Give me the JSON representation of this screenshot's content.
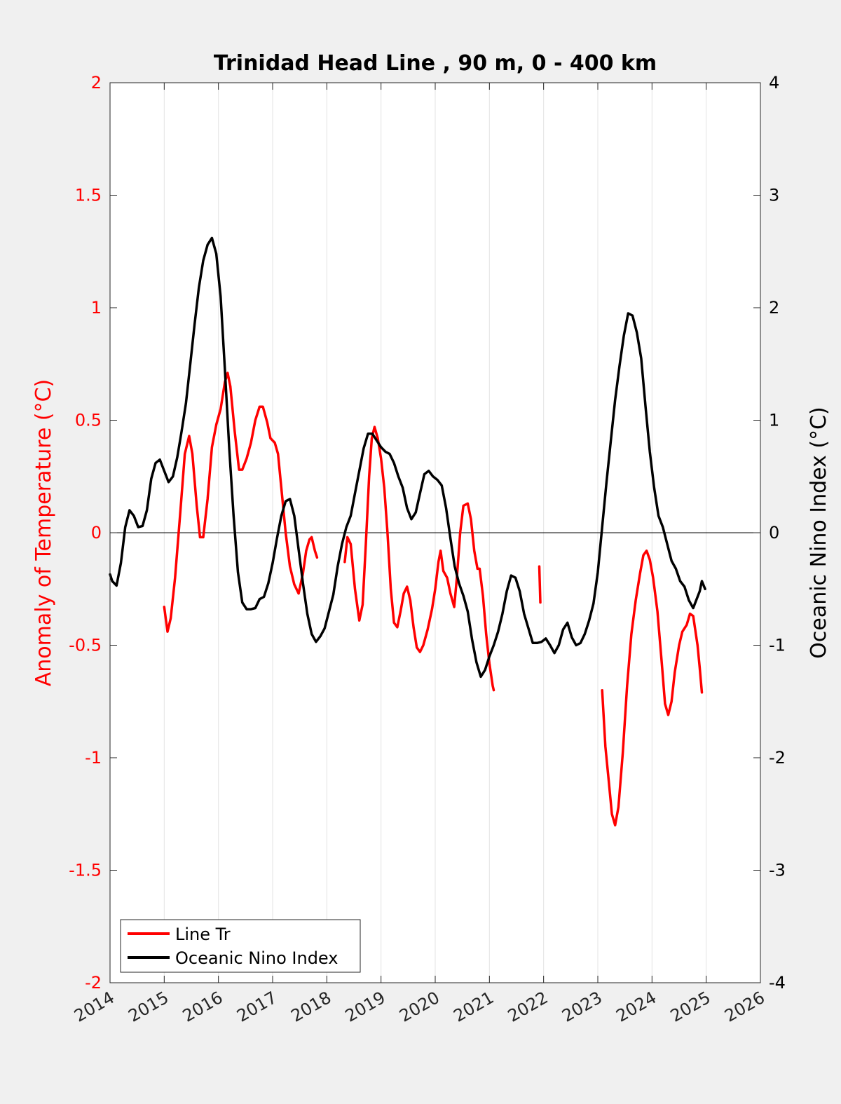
{
  "chart_data": {
    "type": "line",
    "title": "Trinidad Head Line , 90 m, 0 - 400 km",
    "xlabel": "",
    "ylabel_left": "Anomaly of Temperature (°C)",
    "ylabel_right": "Oceanic Nino Index (°C)",
    "xlim": [
      2014,
      2026
    ],
    "ylim_left": [
      -2,
      2
    ],
    "ylim_right": [
      -4,
      4
    ],
    "x_ticks": [
      "2014",
      "2015",
      "2016",
      "2017",
      "2018",
      "2019",
      "2020",
      "2021",
      "2022",
      "2023",
      "2024",
      "2025",
      "2026"
    ],
    "y_ticks_left": [
      "2",
      "1.5",
      "1",
      "0.5",
      "0",
      "-0.5",
      "-1",
      "-1.5",
      "-2"
    ],
    "y_ticks_right": [
      "4",
      "3",
      "2",
      "1",
      "0",
      "-1",
      "-2",
      "-3",
      "-4"
    ],
    "grid": "vertical",
    "zero_line": true,
    "legend_position": "bottom-left",
    "colors": {
      "line_tr": "#ff0000",
      "oni": "#000000",
      "left_axis": "#ff0000",
      "right_axis": "#000000"
    },
    "series": [
      {
        "name": "Line Tr",
        "axis": "left",
        "color": "#ff0000",
        "segments": [
          [
            [
              2015.0,
              -0.33
            ],
            [
              2015.06,
              -0.44
            ],
            [
              2015.12,
              -0.38
            ],
            [
              2015.2,
              -0.2
            ],
            [
              2015.3,
              0.1
            ],
            [
              2015.38,
              0.35
            ],
            [
              2015.46,
              0.43
            ],
            [
              2015.52,
              0.35
            ],
            [
              2015.6,
              0.12
            ],
            [
              2015.66,
              -0.02
            ],
            [
              2015.72,
              -0.02
            ],
            [
              2015.8,
              0.15
            ],
            [
              2015.88,
              0.38
            ],
            [
              2015.96,
              0.48
            ],
            [
              2016.04,
              0.55
            ],
            [
              2016.12,
              0.67
            ],
            [
              2016.17,
              0.71
            ],
            [
              2016.22,
              0.65
            ],
            [
              2016.3,
              0.45
            ],
            [
              2016.38,
              0.28
            ],
            [
              2016.44,
              0.28
            ],
            [
              2016.52,
              0.33
            ],
            [
              2016.6,
              0.4
            ],
            [
              2016.68,
              0.5
            ],
            [
              2016.76,
              0.56
            ],
            [
              2016.82,
              0.56
            ],
            [
              2016.9,
              0.49
            ],
            [
              2016.96,
              0.42
            ],
            [
              2017.04,
              0.4
            ],
            [
              2017.1,
              0.35
            ],
            [
              2017.16,
              0.2
            ],
            [
              2017.24,
              0.0
            ],
            [
              2017.32,
              -0.15
            ],
            [
              2017.4,
              -0.23
            ],
            [
              2017.48,
              -0.27
            ],
            [
              2017.56,
              -0.18
            ],
            [
              2017.62,
              -0.08
            ],
            [
              2017.68,
              -0.03
            ],
            [
              2017.72,
              -0.02
            ],
            [
              2017.78,
              -0.08
            ],
            [
              2017.82,
              -0.11
            ]
          ],
          [
            [
              2018.33,
              -0.13
            ],
            [
              2018.38,
              -0.02
            ],
            [
              2018.44,
              -0.05
            ],
            [
              2018.52,
              -0.25
            ],
            [
              2018.6,
              -0.39
            ],
            [
              2018.66,
              -0.32
            ],
            [
              2018.72,
              -0.05
            ],
            [
              2018.78,
              0.25
            ],
            [
              2018.83,
              0.42
            ],
            [
              2018.88,
              0.47
            ],
            [
              2018.94,
              0.42
            ],
            [
              2019.0,
              0.33
            ],
            [
              2019.06,
              0.2
            ],
            [
              2019.12,
              0.0
            ],
            [
              2019.18,
              -0.25
            ],
            [
              2019.24,
              -0.4
            ],
            [
              2019.3,
              -0.42
            ],
            [
              2019.36,
              -0.35
            ],
            [
              2019.42,
              -0.27
            ],
            [
              2019.48,
              -0.24
            ],
            [
              2019.54,
              -0.3
            ],
            [
              2019.6,
              -0.42
            ],
            [
              2019.66,
              -0.51
            ],
            [
              2019.72,
              -0.53
            ],
            [
              2019.78,
              -0.5
            ],
            [
              2019.86,
              -0.43
            ],
            [
              2019.94,
              -0.34
            ],
            [
              2020.0,
              -0.25
            ],
            [
              2020.06,
              -0.13
            ],
            [
              2020.1,
              -0.08
            ],
            [
              2020.15,
              -0.17
            ],
            [
              2020.22,
              -0.2
            ],
            [
              2020.28,
              -0.27
            ],
            [
              2020.35,
              -0.33
            ],
            [
              2020.4,
              -0.2
            ],
            [
              2020.46,
              0.0
            ],
            [
              2020.52,
              0.12
            ],
            [
              2020.6,
              0.13
            ],
            [
              2020.66,
              0.06
            ],
            [
              2020.72,
              -0.08
            ],
            [
              2020.78,
              -0.16
            ],
            [
              2020.82,
              -0.16
            ],
            [
              2020.88,
              -0.28
            ],
            [
              2020.94,
              -0.45
            ],
            [
              2021.0,
              -0.58
            ],
            [
              2021.06,
              -0.68
            ],
            [
              2021.08,
              -0.7
            ]
          ],
          [
            [
              2021.92,
              -0.15
            ],
            [
              2021.94,
              -0.31
            ]
          ],
          [
            [
              2023.08,
              -0.7
            ],
            [
              2023.14,
              -0.95
            ],
            [
              2023.2,
              -1.1
            ],
            [
              2023.26,
              -1.25
            ],
            [
              2023.32,
              -1.3
            ],
            [
              2023.38,
              -1.22
            ],
            [
              2023.46,
              -0.98
            ],
            [
              2023.54,
              -0.68
            ],
            [
              2023.62,
              -0.45
            ],
            [
              2023.7,
              -0.3
            ],
            [
              2023.78,
              -0.18
            ],
            [
              2023.84,
              -0.1
            ],
            [
              2023.9,
              -0.08
            ],
            [
              2023.96,
              -0.12
            ],
            [
              2024.02,
              -0.2
            ],
            [
              2024.1,
              -0.35
            ],
            [
              2024.18,
              -0.58
            ],
            [
              2024.24,
              -0.76
            ],
            [
              2024.3,
              -0.81
            ],
            [
              2024.36,
              -0.75
            ],
            [
              2024.42,
              -0.62
            ],
            [
              2024.5,
              -0.5
            ],
            [
              2024.56,
              -0.44
            ],
            [
              2024.64,
              -0.41
            ],
            [
              2024.7,
              -0.36
            ],
            [
              2024.76,
              -0.37
            ],
            [
              2024.84,
              -0.5
            ],
            [
              2024.88,
              -0.6
            ],
            [
              2024.92,
              -0.71
            ]
          ]
        ]
      },
      {
        "name": "Oceanic Nino Index",
        "axis": "right",
        "color": "#000000",
        "segments": [
          [
            [
              2014.0,
              -0.37
            ],
            [
              2014.04,
              -0.43
            ],
            [
              2014.12,
              -0.47
            ],
            [
              2014.2,
              -0.27
            ],
            [
              2014.28,
              0.05
            ],
            [
              2014.36,
              0.2
            ],
            [
              2014.44,
              0.15
            ],
            [
              2014.52,
              0.05
            ],
            [
              2014.6,
              0.06
            ],
            [
              2014.68,
              0.2
            ],
            [
              2014.76,
              0.48
            ],
            [
              2014.84,
              0.62
            ],
            [
              2014.92,
              0.65
            ],
            [
              2015.0,
              0.55
            ],
            [
              2015.08,
              0.45
            ],
            [
              2015.16,
              0.5
            ],
            [
              2015.24,
              0.67
            ],
            [
              2015.32,
              0.9
            ],
            [
              2015.4,
              1.15
            ],
            [
              2015.48,
              1.5
            ],
            [
              2015.56,
              1.85
            ],
            [
              2015.64,
              2.18
            ],
            [
              2015.72,
              2.42
            ],
            [
              2015.8,
              2.56
            ],
            [
              2015.88,
              2.62
            ],
            [
              2015.96,
              2.48
            ],
            [
              2016.04,
              2.1
            ],
            [
              2016.12,
              1.45
            ],
            [
              2016.2,
              0.75
            ],
            [
              2016.28,
              0.15
            ],
            [
              2016.36,
              -0.35
            ],
            [
              2016.44,
              -0.62
            ],
            [
              2016.52,
              -0.68
            ],
            [
              2016.6,
              -0.68
            ],
            [
              2016.68,
              -0.67
            ],
            [
              2016.76,
              -0.59
            ],
            [
              2016.84,
              -0.57
            ],
            [
              2016.92,
              -0.45
            ],
            [
              2017.0,
              -0.27
            ],
            [
              2017.08,
              -0.05
            ],
            [
              2017.16,
              0.15
            ],
            [
              2017.24,
              0.28
            ],
            [
              2017.32,
              0.3
            ],
            [
              2017.4,
              0.15
            ],
            [
              2017.48,
              -0.15
            ],
            [
              2017.56,
              -0.45
            ],
            [
              2017.64,
              -0.72
            ],
            [
              2017.72,
              -0.9
            ],
            [
              2017.8,
              -0.97
            ],
            [
              2017.88,
              -0.92
            ],
            [
              2017.96,
              -0.85
            ],
            [
              2018.04,
              -0.7
            ],
            [
              2018.12,
              -0.55
            ],
            [
              2018.2,
              -0.3
            ],
            [
              2018.28,
              -0.1
            ],
            [
              2018.36,
              0.05
            ],
            [
              2018.44,
              0.15
            ],
            [
              2018.52,
              0.35
            ],
            [
              2018.6,
              0.55
            ],
            [
              2018.68,
              0.75
            ],
            [
              2018.76,
              0.88
            ],
            [
              2018.84,
              0.88
            ],
            [
              2018.92,
              0.82
            ],
            [
              2019.0,
              0.76
            ],
            [
              2019.08,
              0.72
            ],
            [
              2019.16,
              0.7
            ],
            [
              2019.24,
              0.62
            ],
            [
              2019.32,
              0.5
            ],
            [
              2019.4,
              0.4
            ],
            [
              2019.48,
              0.22
            ],
            [
              2019.56,
              0.12
            ],
            [
              2019.64,
              0.18
            ],
            [
              2019.72,
              0.35
            ],
            [
              2019.8,
              0.52
            ],
            [
              2019.88,
              0.55
            ],
            [
              2019.96,
              0.5
            ],
            [
              2020.04,
              0.47
            ],
            [
              2020.12,
              0.42
            ],
            [
              2020.2,
              0.22
            ],
            [
              2020.28,
              -0.05
            ],
            [
              2020.36,
              -0.3
            ],
            [
              2020.44,
              -0.45
            ],
            [
              2020.52,
              -0.56
            ],
            [
              2020.6,
              -0.7
            ],
            [
              2020.68,
              -0.95
            ],
            [
              2020.76,
              -1.15
            ],
            [
              2020.84,
              -1.28
            ],
            [
              2020.92,
              -1.22
            ],
            [
              2021.0,
              -1.1
            ],
            [
              2021.08,
              -1.0
            ],
            [
              2021.16,
              -0.88
            ],
            [
              2021.24,
              -0.72
            ],
            [
              2021.32,
              -0.52
            ],
            [
              2021.4,
              -0.38
            ],
            [
              2021.48,
              -0.4
            ],
            [
              2021.56,
              -0.52
            ],
            [
              2021.64,
              -0.72
            ],
            [
              2021.72,
              -0.85
            ],
            [
              2021.8,
              -0.98
            ],
            [
              2021.88,
              -0.98
            ],
            [
              2021.96,
              -0.97
            ],
            [
              2022.04,
              -0.94
            ],
            [
              2022.12,
              -1.0
            ],
            [
              2022.2,
              -1.07
            ],
            [
              2022.28,
              -1.0
            ],
            [
              2022.36,
              -0.86
            ],
            [
              2022.44,
              -0.8
            ],
            [
              2022.52,
              -0.93
            ],
            [
              2022.6,
              -1.0
            ],
            [
              2022.68,
              -0.98
            ],
            [
              2022.76,
              -0.9
            ],
            [
              2022.84,
              -0.78
            ],
            [
              2022.92,
              -0.63
            ],
            [
              2023.0,
              -0.35
            ],
            [
              2023.08,
              0.05
            ],
            [
              2023.16,
              0.45
            ],
            [
              2023.24,
              0.82
            ],
            [
              2023.32,
              1.18
            ],
            [
              2023.4,
              1.48
            ],
            [
              2023.48,
              1.75
            ],
            [
              2023.56,
              1.95
            ],
            [
              2023.64,
              1.93
            ],
            [
              2023.72,
              1.78
            ],
            [
              2023.8,
              1.55
            ],
            [
              2023.88,
              1.12
            ],
            [
              2023.96,
              0.72
            ],
            [
              2024.04,
              0.4
            ],
            [
              2024.12,
              0.15
            ],
            [
              2024.2,
              0.05
            ],
            [
              2024.28,
              -0.1
            ],
            [
              2024.36,
              -0.25
            ],
            [
              2024.44,
              -0.32
            ],
            [
              2024.52,
              -0.43
            ],
            [
              2024.6,
              -0.48
            ],
            [
              2024.68,
              -0.6
            ],
            [
              2024.76,
              -0.67
            ],
            [
              2024.84,
              -0.57
            ],
            [
              2024.88,
              -0.52
            ],
            [
              2024.92,
              -0.43
            ],
            [
              2024.98,
              -0.5
            ]
          ]
        ]
      }
    ]
  }
}
